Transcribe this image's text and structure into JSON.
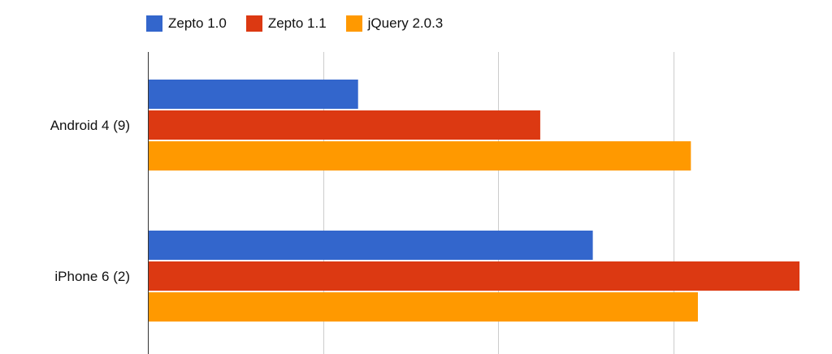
{
  "chart_data": {
    "type": "bar",
    "orientation": "horizontal",
    "categories": [
      "Android 4 (9)",
      "iPhone 6 (2)"
    ],
    "series": [
      {
        "name": "Zepto 1.0",
        "color": "#3366CC",
        "values": [
          1.2,
          2.54
        ]
      },
      {
        "name": "Zepto 1.1",
        "color": "#DC3912",
        "values": [
          2.24,
          3.72
        ]
      },
      {
        "name": "jQuery 2.0.3",
        "color": "#FF9900",
        "values": [
          3.1,
          3.14
        ]
      }
    ],
    "xlim": [
      0,
      3.72
    ],
    "grid": true,
    "legend": "top-left",
    "title": "",
    "xlabel": "",
    "ylabel": ""
  }
}
